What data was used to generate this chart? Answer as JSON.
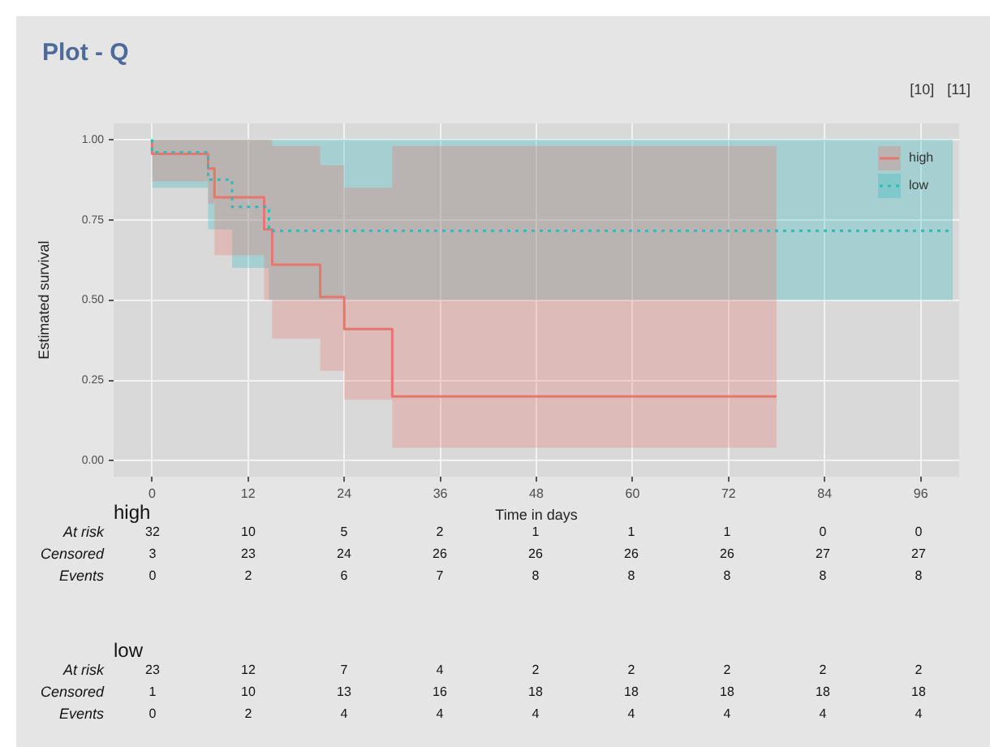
{
  "chart_data": [
    {
      "type": "step",
      "title": "Plot - Q",
      "xlabel": "Time in days",
      "ylabel": "Estimated survival",
      "annotations": [
        "[10]",
        "[11]"
      ],
      "xlim": [
        -4.8,
        100.8
      ],
      "ylim": [
        -0.05,
        1.05
      ],
      "xticks": [
        0,
        12,
        24,
        36,
        48,
        60,
        72,
        84,
        96
      ],
      "yticks": [
        {
          "value": 0,
          "label": "0.00"
        },
        {
          "value": 0.25,
          "label": "0.25"
        },
        {
          "value": 0.5,
          "label": "0.50"
        },
        {
          "value": 0.75,
          "label": "0.75"
        },
        {
          "value": 1,
          "label": "1.00"
        }
      ],
      "grid": true,
      "legend": "top right",
      "series": [
        {
          "name": "high",
          "color": "#e8766d",
          "line_style": "solid",
          "x": [
            0,
            7,
            7.8,
            14,
            15,
            21,
            24,
            30,
            40,
            78
          ],
          "values": [
            1,
            0.955,
            0.91,
            0.82,
            0.72,
            0.61,
            0.51,
            0.41,
            0.2,
            0.2
          ],
          "lower": [
            1,
            0.87,
            0.8,
            0.64,
            0.5,
            0.38,
            0.28,
            0.19,
            0.04,
            0.04
          ],
          "upper": [
            1,
            1,
            1,
            1,
            1,
            0.98,
            0.92,
            0.85,
            0.98,
            0.98
          ]
        },
        {
          "name": "low",
          "color": "#2fb9bd",
          "line_style": "dotted",
          "x": [
            0,
            7,
            10,
            14.6,
            18,
            100
          ],
          "values": [
            1,
            0.96,
            0.875,
            0.79,
            0.716,
            0.716
          ],
          "lower": [
            1,
            0.85,
            0.72,
            0.6,
            0.5,
            0.5
          ],
          "upper": [
            1,
            1,
            1,
            1,
            1,
            1
          ]
        }
      ]
    },
    {
      "type": "other",
      "title": "high",
      "y_categories": [
        "At risk",
        "Censored",
        "Events"
      ],
      "annotations": [
        "32",
        "10",
        "5",
        "2",
        "1",
        "1",
        "1",
        "0",
        "0",
        "3",
        "23",
        "24",
        "26",
        "26",
        "26",
        "26",
        "27",
        "27",
        "0",
        "2",
        "6",
        "7",
        "8",
        "8",
        "8",
        "8",
        "8"
      ]
    },
    {
      "type": "other",
      "title": "low",
      "y_categories": [
        "At risk",
        "Censored",
        "Events"
      ],
      "annotations": [
        "23",
        "12",
        "7",
        "4",
        "2",
        "2",
        "2",
        "2",
        "2",
        "1",
        "10",
        "13",
        "16",
        "18",
        "18",
        "18",
        "18",
        "18",
        "0",
        "2",
        "4",
        "4",
        "4",
        "4",
        "4",
        "4",
        "4"
      ]
    }
  ]
}
